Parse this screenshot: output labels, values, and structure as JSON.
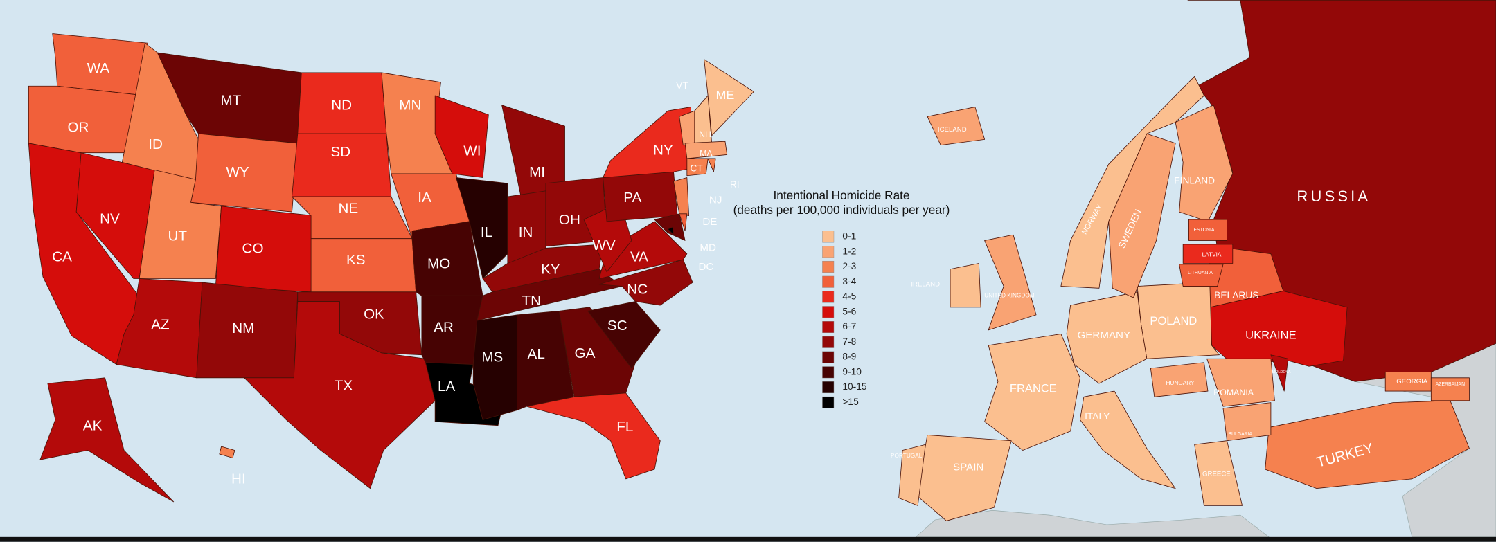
{
  "legend": {
    "title": "Intentional Homicide Rate",
    "subtitle": "(deaths per 100,000 individuals per year)",
    "items": [
      {
        "label": "0-1",
        "color": "#fbbf8f"
      },
      {
        "label": "1-2",
        "color": "#f9a373"
      },
      {
        "label": "2-3",
        "color": "#f5814f"
      },
      {
        "label": "3-4",
        "color": "#f1603a"
      },
      {
        "label": "4-5",
        "color": "#ea2a1d"
      },
      {
        "label": "5-6",
        "color": "#d50d0b"
      },
      {
        "label": "6-7",
        "color": "#b40a0a"
      },
      {
        "label": "7-8",
        "color": "#930808"
      },
      {
        "label": "8-9",
        "color": "#6c0505"
      },
      {
        "label": "9-10",
        "color": "#470303"
      },
      {
        "label": "10-15",
        "color": "#260101"
      },
      {
        "label": ">15",
        "color": "#000000"
      }
    ]
  },
  "us_states": [
    {
      "label": "WA",
      "color": "#f1603a"
    },
    {
      "label": "OR",
      "color": "#f1603a"
    },
    {
      "label": "CA",
      "color": "#d50d0b"
    },
    {
      "label": "NV",
      "color": "#d50d0b"
    },
    {
      "label": "ID",
      "color": "#f5814f"
    },
    {
      "label": "MT",
      "color": "#6c0505"
    },
    {
      "label": "WY",
      "color": "#f1603a"
    },
    {
      "label": "UT",
      "color": "#f5814f"
    },
    {
      "label": "CO",
      "color": "#d50d0b"
    },
    {
      "label": "AZ",
      "color": "#b40a0a"
    },
    {
      "label": "NM",
      "color": "#930808"
    },
    {
      "label": "ND",
      "color": "#ea2a1d"
    },
    {
      "label": "SD",
      "color": "#ea2a1d"
    },
    {
      "label": "NE",
      "color": "#f1603a"
    },
    {
      "label": "KS",
      "color": "#f1603a"
    },
    {
      "label": "OK",
      "color": "#930808"
    },
    {
      "label": "TX",
      "color": "#b40a0a"
    },
    {
      "label": "MN",
      "color": "#f5814f"
    },
    {
      "label": "IA",
      "color": "#f1603a"
    },
    {
      "label": "MO",
      "color": "#470303"
    },
    {
      "label": "AR",
      "color": "#470303"
    },
    {
      "label": "LA",
      "color": "#000000"
    },
    {
      "label": "WI",
      "color": "#d50d0b"
    },
    {
      "label": "IL",
      "color": "#260101"
    },
    {
      "label": "MI",
      "color": "#930808"
    },
    {
      "label": "IN",
      "color": "#930808"
    },
    {
      "label": "OH",
      "color": "#930808"
    },
    {
      "label": "KY",
      "color": "#930808"
    },
    {
      "label": "TN",
      "color": "#6c0505"
    },
    {
      "label": "MS",
      "color": "#260101"
    },
    {
      "label": "AL",
      "color": "#470303"
    },
    {
      "label": "GA",
      "color": "#6c0505"
    },
    {
      "label": "FL",
      "color": "#ea2a1d"
    },
    {
      "label": "SC",
      "color": "#470303"
    },
    {
      "label": "NC",
      "color": "#930808"
    },
    {
      "label": "VA",
      "color": "#b40a0a"
    },
    {
      "label": "WV",
      "color": "#b40a0a"
    },
    {
      "label": "PA",
      "color": "#930808"
    },
    {
      "label": "NY",
      "color": "#ea2a1d"
    },
    {
      "label": "MD",
      "color": "#6c0505"
    },
    {
      "label": "NJ",
      "color": "#f5814f"
    },
    {
      "label": "DE",
      "color": "#f1603a"
    },
    {
      "label": "VT",
      "color": "#f9a373"
    },
    {
      "label": "NH",
      "color": "#fbbf8f"
    },
    {
      "label": "ME",
      "color": "#fbbf8f"
    },
    {
      "label": "MA",
      "color": "#f9a373"
    },
    {
      "label": "CT",
      "color": "#f5814f"
    },
    {
      "label": "RI",
      "color": "#f5814f"
    },
    {
      "label": "AK",
      "color": "#b40a0a"
    },
    {
      "label": "HI",
      "color": "#f5814f"
    },
    {
      "label": "DC",
      "color": "#000000"
    }
  ],
  "europe_countries": [
    {
      "label": "RUSSIA",
      "color": "#930808"
    },
    {
      "label": "UKRAINE",
      "color": "#d50d0b"
    },
    {
      "label": "BELARUS",
      "color": "#f1603a"
    },
    {
      "label": "TURKEY",
      "color": "#f5814f"
    },
    {
      "label": "POLAND",
      "color": "#fbbf8f"
    },
    {
      "label": "GERMANY",
      "color": "#fbbf8f"
    },
    {
      "label": "FRANCE",
      "color": "#fbbf8f"
    },
    {
      "label": "SPAIN",
      "color": "#fbbf8f"
    },
    {
      "label": "ITALY",
      "color": "#fbbf8f"
    },
    {
      "label": "FINLAND",
      "color": "#f9a373"
    },
    {
      "label": "SWEDEN",
      "color": "#f9a373"
    },
    {
      "label": "NORWAY",
      "color": "#fbbf8f"
    },
    {
      "label": "ICELAND",
      "color": "#f9a373"
    },
    {
      "label": "IRELAND",
      "color": "#fbbf8f"
    },
    {
      "label": "UNITED KINGDOM",
      "color": "#f9a373"
    },
    {
      "label": "ROMANIA",
      "color": "#f9a373"
    },
    {
      "label": "HUNGARY",
      "color": "#f9a373"
    },
    {
      "label": "LATVIA",
      "color": "#ea2a1d"
    },
    {
      "label": "LITHUANIA",
      "color": "#f1603a"
    },
    {
      "label": "ESTONIA",
      "color": "#f1603a"
    },
    {
      "label": "GEORGIA",
      "color": "#f5814f"
    },
    {
      "label": "AZERBAIJAN",
      "color": "#f5814f"
    },
    {
      "label": "MOLDOVA",
      "color": "#b40a0a"
    },
    {
      "label": "BULGARIA",
      "color": "#f9a373"
    },
    {
      "label": "GREECE",
      "color": "#fbbf8f"
    },
    {
      "label": "PORTUGAL",
      "color": "#fbbf8f"
    }
  ]
}
